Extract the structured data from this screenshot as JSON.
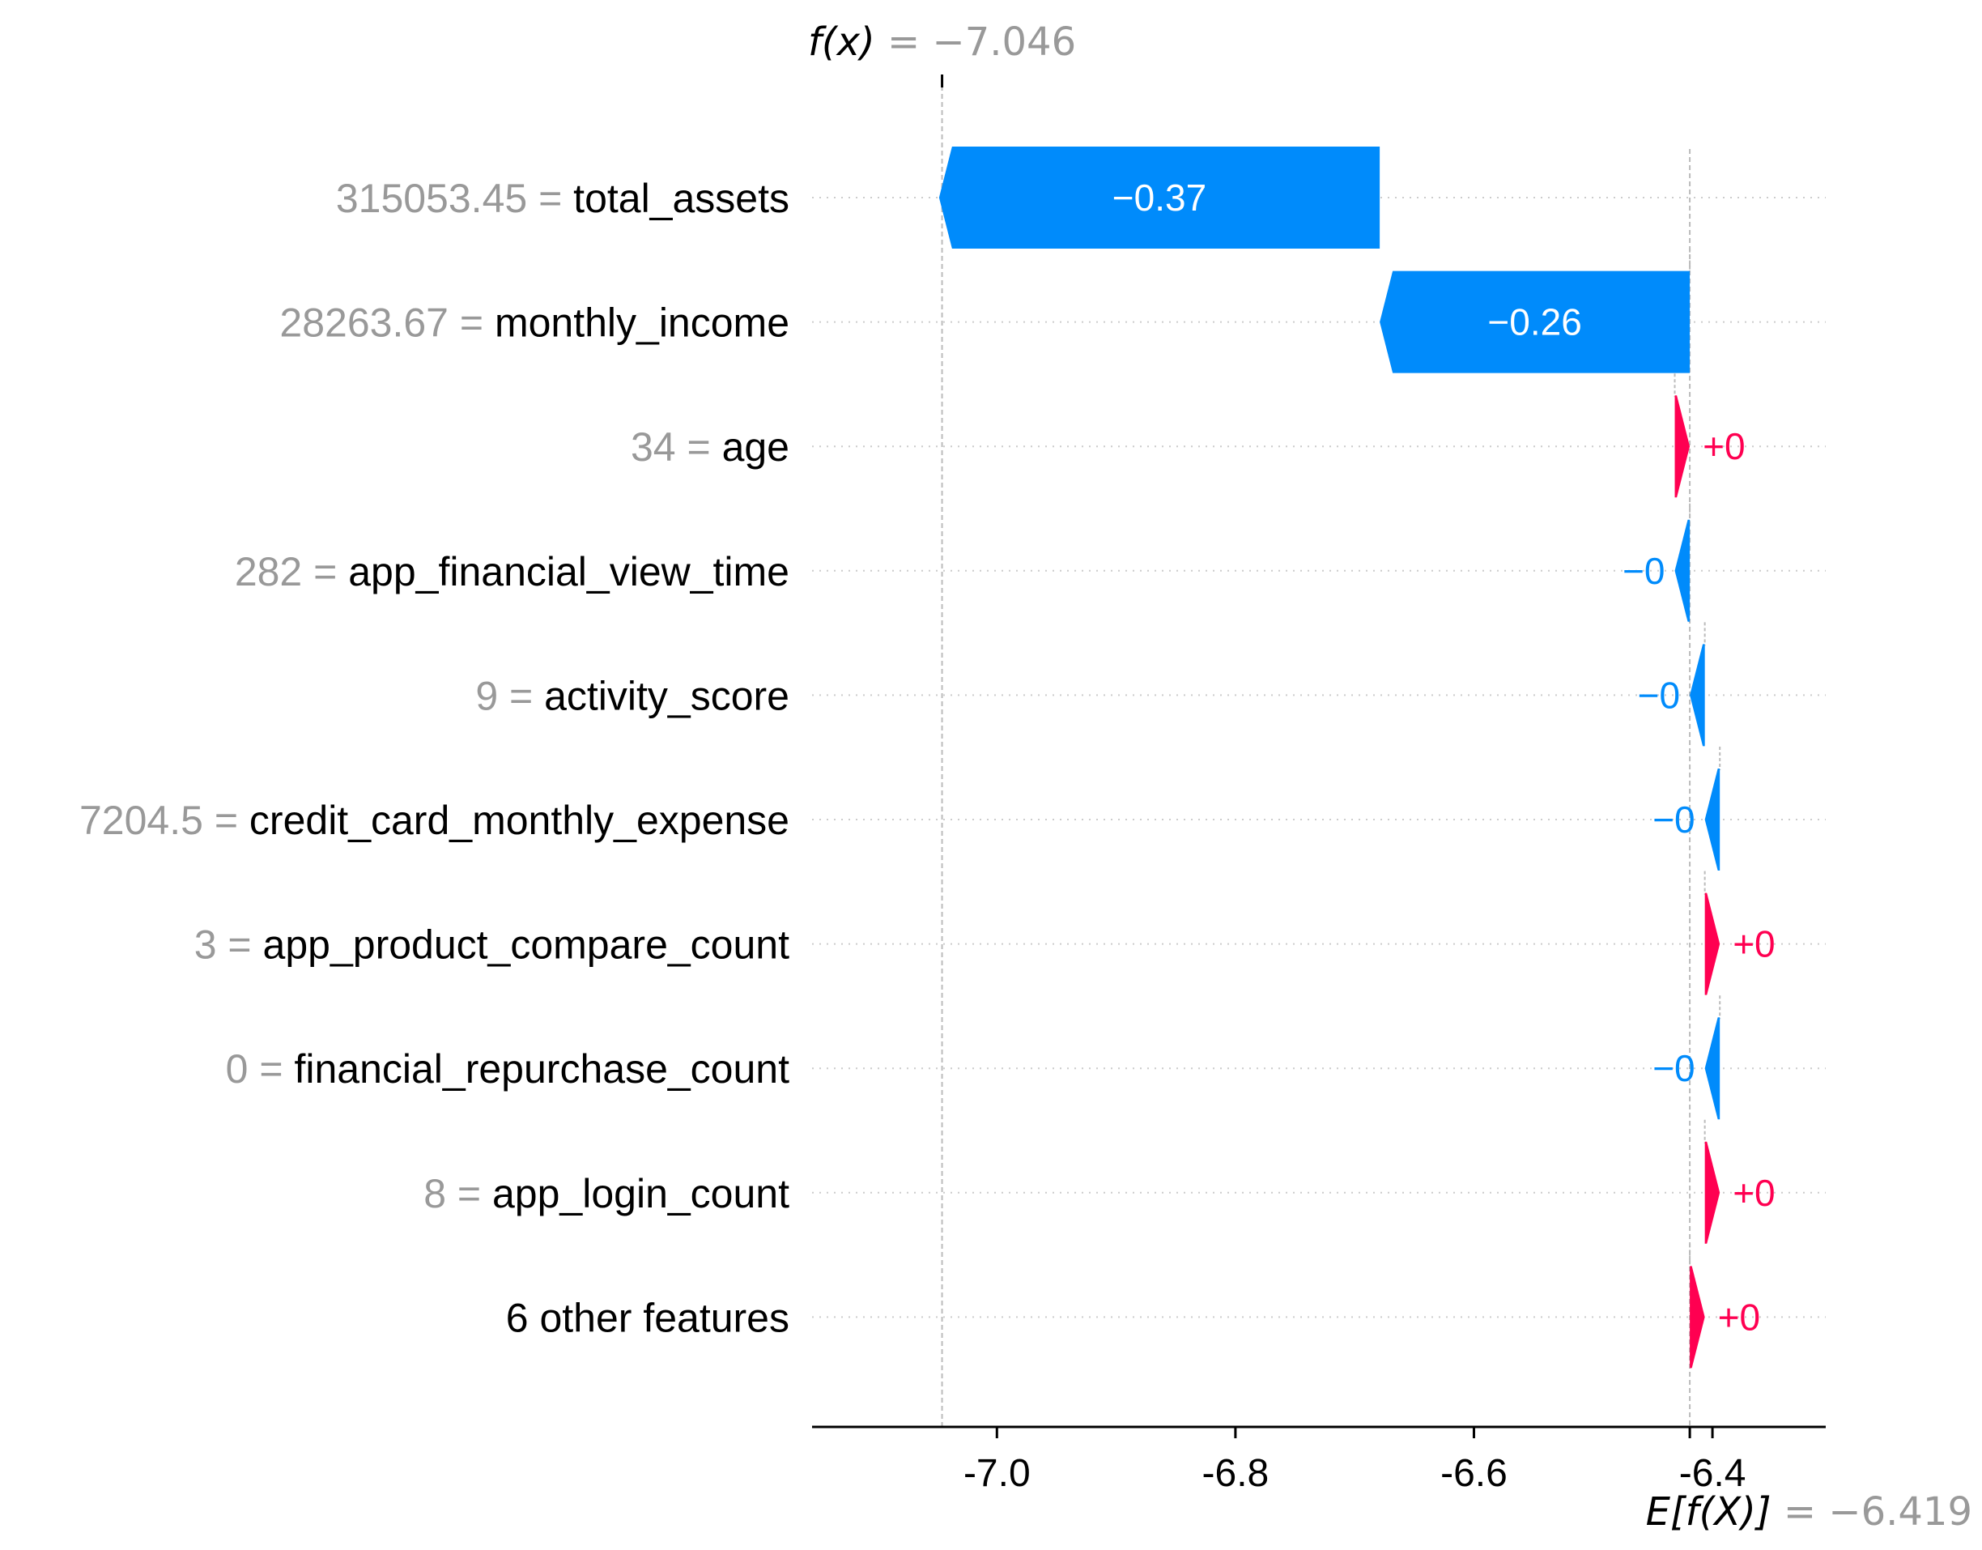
{
  "chart_data": {
    "type": "waterfall",
    "fx": {
      "label": "f(x)",
      "value": "−7.046",
      "num": -7.046
    },
    "efx": {
      "label": "E[f(X)]",
      "value": "−6.419",
      "num": -6.419
    },
    "xlim": [
      -7.155,
      -6.305
    ],
    "xticks": [
      {
        "value": -7.0,
        "label": "-7.0"
      },
      {
        "value": -6.8,
        "label": "-6.8"
      },
      {
        "value": -6.6,
        "label": "-6.6"
      },
      {
        "value": -6.4,
        "label": "-6.4"
      }
    ],
    "features": [
      {
        "value": "315053.45",
        "name": "total_assets",
        "shap": -0.3695,
        "label": "−0.37"
      },
      {
        "value": "28263.67",
        "name": "monthly_income",
        "shap": -0.26,
        "label": "−0.26"
      },
      {
        "value": "34",
        "name": "age",
        "shap": 0.0126,
        "label": "+0"
      },
      {
        "value": "282",
        "name": "app_financial_view_time",
        "shap": -0.0126,
        "label": "−0"
      },
      {
        "value": "9",
        "name": "activity_score",
        "shap": -0.0126,
        "label": "−0"
      },
      {
        "value": "7204.5",
        "name": "credit_card_monthly_expense",
        "shap": -0.0126,
        "label": "−0"
      },
      {
        "value": "3",
        "name": "app_product_compare_count",
        "shap": 0.0126,
        "label": "+0"
      },
      {
        "value": "0",
        "name": "financial_repurchase_count",
        "shap": -0.0126,
        "label": "−0"
      },
      {
        "value": "8",
        "name": "app_login_count",
        "shap": 0.0126,
        "label": "+0"
      },
      {
        "value": "",
        "name": "6 other features",
        "shap": 0.0126,
        "label": "+0"
      }
    ],
    "colors": {
      "negative": "#008bfb",
      "positive": "#ff0051",
      "value_text": "#999999",
      "name_text": "#000000"
    }
  }
}
